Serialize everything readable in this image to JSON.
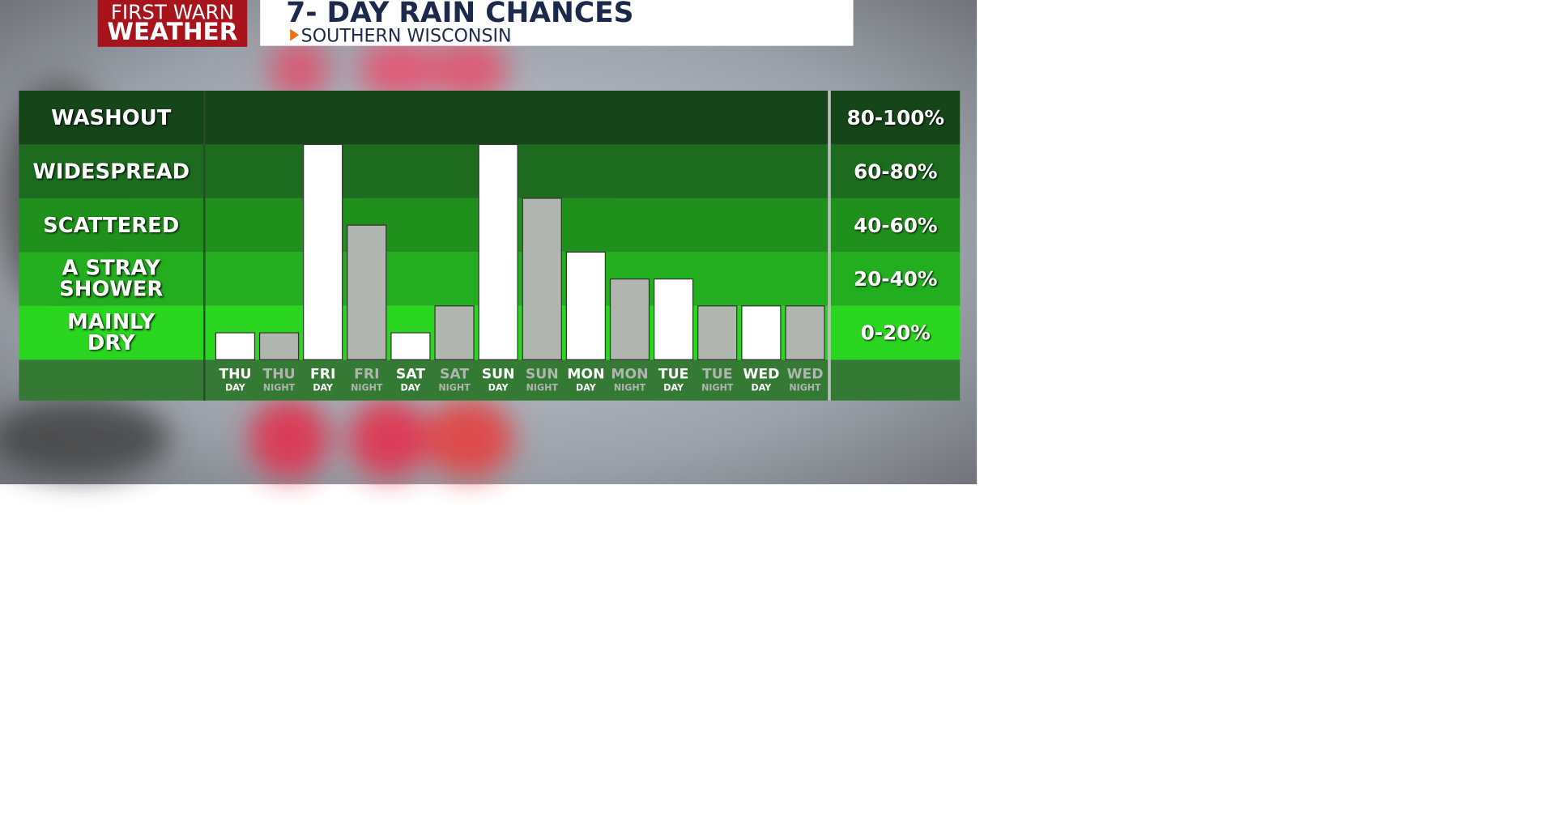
{
  "header": {
    "logo_line1": "FIRST WARN",
    "logo_line2": "WEATHER",
    "subtitle": "SOUTHERN WISCONSIN"
  },
  "chart_data": {
    "type": "bar",
    "title": "7- DAY RAIN CHANCES",
    "categories": [
      "THU",
      "THU",
      "FRI",
      "FRI",
      "SAT",
      "SAT",
      "SUN",
      "SUN",
      "MON",
      "MON",
      "TUE",
      "TUE",
      "WED",
      "WED"
    ],
    "sublabels": [
      "DAY",
      "NIGHT",
      "DAY",
      "NIGHT",
      "DAY",
      "NIGHT",
      "DAY",
      "NIGHT",
      "DAY",
      "NIGHT",
      "DAY",
      "NIGHT",
      "DAY",
      "NIGHT"
    ],
    "values": [
      10,
      10,
      80,
      50,
      10,
      20,
      80,
      60,
      40,
      30,
      30,
      20,
      20,
      20
    ],
    "colors": [
      "#ffffff",
      "#b0b5b0",
      "#ffffff",
      "#b0b5b0",
      "#ffffff",
      "#b0b5b0",
      "#ffffff",
      "#b0b5b0",
      "#ffffff",
      "#b0b5b0",
      "#ffffff",
      "#b0b5b0",
      "#ffffff",
      "#b0b5b0"
    ],
    "ylim": [
      0,
      100
    ],
    "bands": [
      {
        "label": "WASHOUT",
        "range_label": "80-100%",
        "from": 80,
        "to": 100,
        "color": "#17451a"
      },
      {
        "label": "WIDESPREAD",
        "range_label": "60-80%",
        "from": 60,
        "to": 80,
        "color": "#1c6b1f"
      },
      {
        "label": "SCATTERED",
        "range_label": "40-60%",
        "from": 40,
        "to": 60,
        "color": "#1f901b"
      },
      {
        "label": "A STRAY SHOWER",
        "range_label": "20-40%",
        "from": 20,
        "to": 40,
        "color": "#23ae1f"
      },
      {
        "label": "MAINLY DRY",
        "range_label": "0-20%",
        "from": 0,
        "to": 20,
        "color": "#2bd620"
      }
    ]
  }
}
